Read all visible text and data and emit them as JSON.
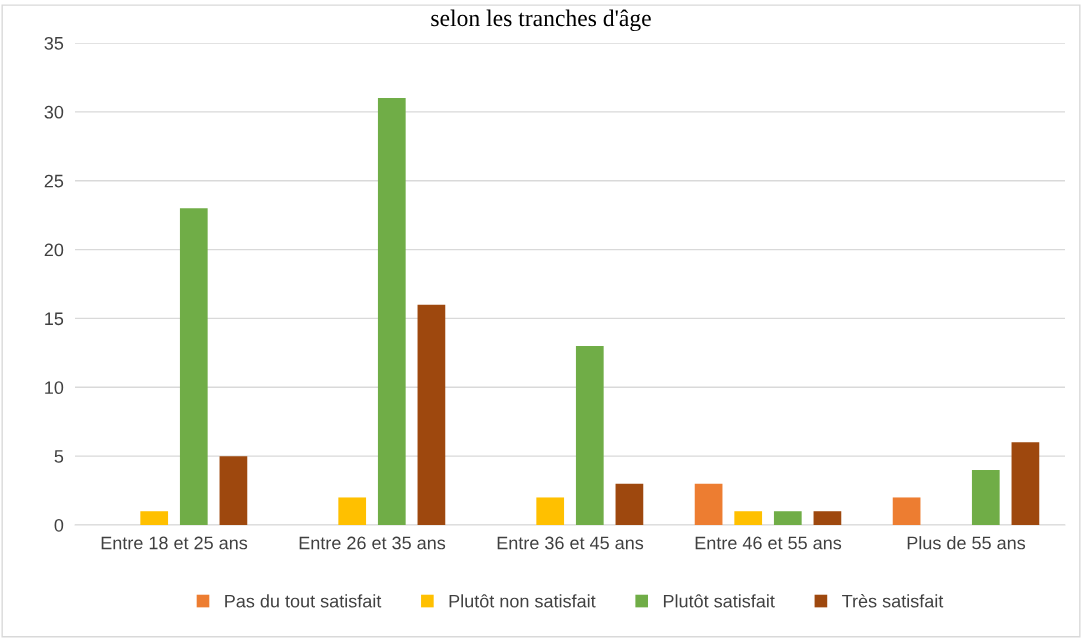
{
  "chart_data": {
    "type": "bar",
    "title": "selon les tranches d'âge",
    "categories": [
      "Entre 18 et 25 ans",
      "Entre 26 et 35 ans",
      "Entre 36 et 45 ans",
      "Entre 46 et 55 ans",
      "Plus de 55 ans"
    ],
    "series": [
      {
        "name": "Pas du tout satisfait",
        "color": "#ed7d31",
        "values": [
          0,
          0,
          0,
          3,
          2
        ]
      },
      {
        "name": "Plutôt non satisfait",
        "color": "#ffc000",
        "values": [
          1,
          2,
          2,
          1,
          0
        ]
      },
      {
        "name": "Plutôt satisfait",
        "color": "#70ad47",
        "values": [
          23,
          31,
          13,
          1,
          4
        ]
      },
      {
        "name": "Très satisfait",
        "color": "#9e480e",
        "values": [
          5,
          16,
          3,
          1,
          6
        ]
      }
    ],
    "ylim": [
      0,
      35
    ],
    "yticks": [
      0,
      5,
      10,
      15,
      20,
      25,
      30,
      35
    ],
    "grid": "y",
    "legend": "bottom"
  }
}
